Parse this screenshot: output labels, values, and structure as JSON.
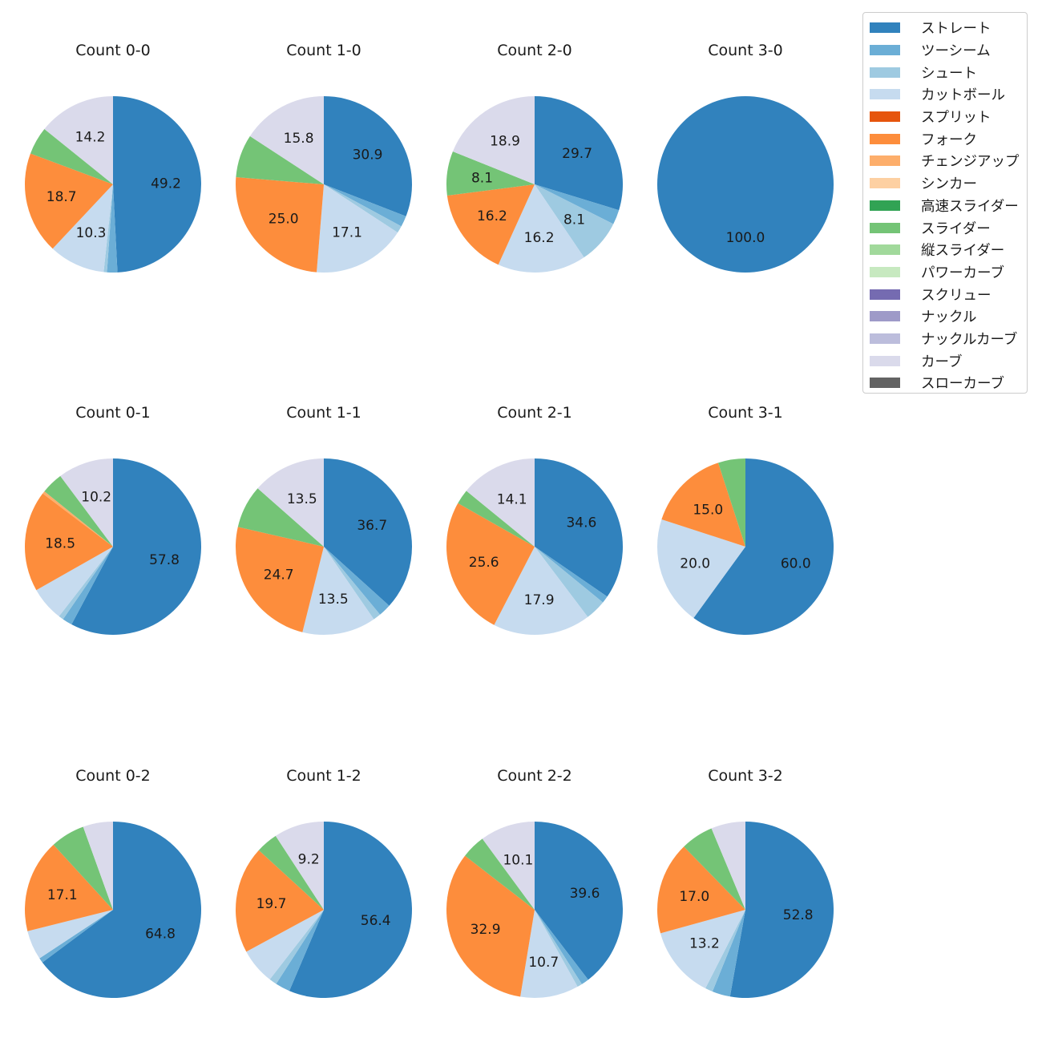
{
  "legend": {
    "items": [
      {
        "label": "ストレート",
        "color": "#3182bd"
      },
      {
        "label": "ツーシーム",
        "color": "#6baed6"
      },
      {
        "label": "シュート",
        "color": "#9ecae1"
      },
      {
        "label": "カットボール",
        "color": "#c6dbef"
      },
      {
        "label": "スプリット",
        "color": "#e6550d"
      },
      {
        "label": "フォーク",
        "color": "#fd8d3c"
      },
      {
        "label": "チェンジアップ",
        "color": "#fdae6b"
      },
      {
        "label": "シンカー",
        "color": "#fdd0a2"
      },
      {
        "label": "高速スライダー",
        "color": "#31a354"
      },
      {
        "label": "スライダー",
        "color": "#74c476"
      },
      {
        "label": "縦スライダー",
        "color": "#a1d99b"
      },
      {
        "label": "パワーカーブ",
        "color": "#c7e9c0"
      },
      {
        "label": "スクリュー",
        "color": "#756bb1"
      },
      {
        "label": "ナックル",
        "color": "#9e9ac8"
      },
      {
        "label": "ナックルカーブ",
        "color": "#bcbddc"
      },
      {
        "label": "カーブ",
        "color": "#dadaeb"
      },
      {
        "label": "スローカーブ",
        "color": "#636363"
      }
    ]
  },
  "chart_data": [
    {
      "type": "pie",
      "title": "Count 0-0",
      "start_angle": 90,
      "direction": "clockwise",
      "categories": [
        "ストレート",
        "ツーシーム",
        "シュート",
        "カットボール",
        "フォーク",
        "スライダー",
        "カーブ"
      ],
      "values": [
        49.2,
        1.9,
        0.6,
        10.3,
        18.7,
        5.1,
        14.2
      ]
    },
    {
      "type": "pie",
      "title": "Count 1-0",
      "start_angle": 90,
      "direction": "clockwise",
      "categories": [
        "ストレート",
        "ツーシーム",
        "シュート",
        "カットボール",
        "フォーク",
        "スライダー",
        "カーブ"
      ],
      "values": [
        30.9,
        2.0,
        1.3,
        17.1,
        25.0,
        7.9,
        15.8
      ]
    },
    {
      "type": "pie",
      "title": "Count 2-0",
      "start_angle": 90,
      "direction": "clockwise",
      "categories": [
        "ストレート",
        "ツーシーム",
        "シュート",
        "カットボール",
        "フォーク",
        "スライダー",
        "カーブ"
      ],
      "values": [
        29.7,
        2.7,
        8.1,
        16.2,
        16.2,
        8.1,
        18.9
      ]
    },
    {
      "type": "pie",
      "title": "Count 3-0",
      "start_angle": 90,
      "direction": "clockwise",
      "categories": [
        "ストレート"
      ],
      "values": [
        100.0
      ]
    },
    {
      "type": "pie",
      "title": "Count 0-1",
      "start_angle": 90,
      "direction": "clockwise",
      "categories": [
        "ストレート",
        "ツーシーム",
        "シュート",
        "カットボール",
        "フォーク",
        "チェンジアップ",
        "スライダー",
        "カーブ"
      ],
      "values": [
        57.8,
        1.8,
        0.9,
        6.3,
        18.5,
        0.5,
        4.0,
        10.2
      ]
    },
    {
      "type": "pie",
      "title": "Count 1-1",
      "start_angle": 90,
      "direction": "clockwise",
      "categories": [
        "ストレート",
        "ツーシーム",
        "シュート",
        "カットボール",
        "フォーク",
        "スライダー",
        "カーブ"
      ],
      "values": [
        36.7,
        2.3,
        1.4,
        13.5,
        24.7,
        7.9,
        13.5
      ]
    },
    {
      "type": "pie",
      "title": "Count 2-1",
      "start_angle": 90,
      "direction": "clockwise",
      "categories": [
        "ストレート",
        "ツーシーム",
        "シュート",
        "カットボール",
        "フォーク",
        "スライダー",
        "カーブ"
      ],
      "values": [
        34.6,
        1.3,
        3.8,
        17.9,
        25.6,
        2.7,
        14.1
      ]
    },
    {
      "type": "pie",
      "title": "Count 3-1",
      "start_angle": 90,
      "direction": "clockwise",
      "categories": [
        "ストレート",
        "カットボール",
        "フォーク",
        "スライダー"
      ],
      "values": [
        60.0,
        20.0,
        15.0,
        5.0
      ]
    },
    {
      "type": "pie",
      "title": "Count 0-2",
      "start_angle": 90,
      "direction": "clockwise",
      "categories": [
        "ストレート",
        "ツーシーム",
        "カットボール",
        "フォーク",
        "スライダー",
        "カーブ"
      ],
      "values": [
        64.8,
        0.9,
        5.4,
        17.1,
        6.3,
        5.5
      ]
    },
    {
      "type": "pie",
      "title": "Count 1-2",
      "start_angle": 90,
      "direction": "clockwise",
      "categories": [
        "ストレート",
        "ツーシーム",
        "シュート",
        "カットボール",
        "フォーク",
        "スライダー",
        "カーブ"
      ],
      "values": [
        56.4,
        2.7,
        1.4,
        6.6,
        19.7,
        4.0,
        9.2
      ]
    },
    {
      "type": "pie",
      "title": "Count 2-2",
      "start_angle": 90,
      "direction": "clockwise",
      "categories": [
        "ストレート",
        "ツーシーム",
        "シュート",
        "カットボール",
        "フォーク",
        "スライダー",
        "カーブ"
      ],
      "values": [
        39.6,
        1.4,
        0.9,
        10.7,
        32.9,
        4.4,
        10.1
      ]
    },
    {
      "type": "pie",
      "title": "Count 3-2",
      "start_angle": 90,
      "direction": "clockwise",
      "categories": [
        "ストレート",
        "ツーシーム",
        "シュート",
        "カットボール",
        "フォーク",
        "スライダー",
        "カーブ"
      ],
      "values": [
        52.8,
        3.3,
        1.4,
        13.2,
        17.0,
        6.0,
        6.3
      ]
    }
  ]
}
